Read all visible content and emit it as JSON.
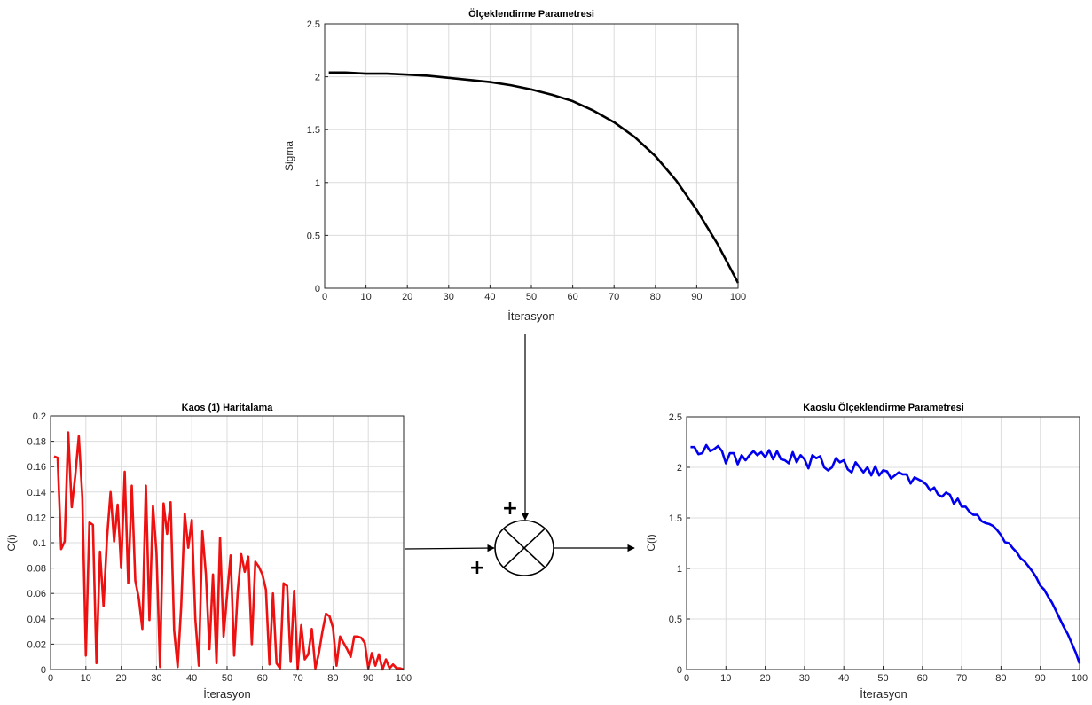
{
  "chart_data": [
    {
      "type": "line",
      "title": "Ölçeklendirme Parametresi",
      "xlabel": "İterasyon",
      "ylabel": "Sigma",
      "xlim": [
        0,
        100
      ],
      "ylim": [
        0,
        2.5
      ],
      "xticks": [
        "0",
        "10",
        "20",
        "30",
        "40",
        "50",
        "60",
        "70",
        "80",
        "90",
        "100"
      ],
      "yticks": [
        "0",
        "0.5",
        "1",
        "1.5",
        "2",
        "2.5"
      ],
      "grid": true,
      "color": "#000000",
      "series": [
        {
          "x": [
            1,
            5,
            10,
            15,
            20,
            25,
            30,
            35,
            40,
            45,
            50,
            55,
            60,
            65,
            70,
            75,
            80,
            85,
            90,
            95,
            100
          ],
          "y": [
            2.04,
            2.04,
            2.03,
            2.03,
            2.02,
            2.01,
            1.99,
            1.97,
            1.95,
            1.92,
            1.88,
            1.83,
            1.77,
            1.68,
            1.57,
            1.43,
            1.25,
            1.02,
            0.74,
            0.42,
            0.05
          ]
        }
      ]
    },
    {
      "type": "line",
      "title": "Kaos (1) Haritalama",
      "xlabel": "İterasyon",
      "ylabel": "C(i)",
      "xlim": [
        0,
        100
      ],
      "ylim": [
        0,
        0.2
      ],
      "xticks": [
        "0",
        "10",
        "20",
        "30",
        "40",
        "50",
        "60",
        "70",
        "80",
        "90",
        "100"
      ],
      "yticks": [
        "0",
        "0.02",
        "0.04",
        "0.06",
        "0.08",
        "0.1",
        "0.12",
        "0.14",
        "0.16",
        "0.18",
        "0.2"
      ],
      "grid": true,
      "color": "#ee1111",
      "series": [
        {
          "x": [
            1,
            2,
            3,
            4,
            5,
            6,
            7,
            8,
            9,
            10,
            11,
            12,
            13,
            14,
            15,
            16,
            17,
            18,
            19,
            20,
            21,
            22,
            23,
            24,
            25,
            26,
            27,
            28,
            29,
            30,
            31,
            32,
            33,
            34,
            35,
            36,
            37,
            38,
            39,
            40,
            41,
            42,
            43,
            44,
            45,
            46,
            47,
            48,
            49,
            50,
            51,
            52,
            53,
            54,
            55,
            56,
            57,
            58,
            59,
            60,
            61,
            62,
            63,
            64,
            65,
            66,
            67,
            68,
            69,
            70,
            71,
            72,
            73,
            74,
            75,
            76,
            77,
            78,
            79,
            80,
            81,
            82,
            83,
            84,
            85,
            86,
            87,
            88,
            89,
            90,
            91,
            92,
            93,
            94,
            95,
            96,
            97,
            98,
            99,
            100
          ],
          "y": [
            0.168,
            0.167,
            0.095,
            0.101,
            0.187,
            0.128,
            0.153,
            0.184,
            0.136,
            0.011,
            0.116,
            0.114,
            0.005,
            0.093,
            0.05,
            0.104,
            0.14,
            0.101,
            0.13,
            0.08,
            0.156,
            0.068,
            0.145,
            0.07,
            0.056,
            0.032,
            0.145,
            0.039,
            0.129,
            0.092,
            0.002,
            0.131,
            0.107,
            0.132,
            0.031,
            0.002,
            0.05,
            0.123,
            0.096,
            0.118,
            0.04,
            0.003,
            0.109,
            0.075,
            0.016,
            0.075,
            0.005,
            0.104,
            0.026,
            0.059,
            0.09,
            0.011,
            0.061,
            0.091,
            0.077,
            0.089,
            0.02,
            0.085,
            0.081,
            0.075,
            0.063,
            0.004,
            0.06,
            0.005,
            0.001,
            0.068,
            0.066,
            0.006,
            0.062,
            0,
            0.035,
            0.008,
            0.012,
            0.032,
            0.001,
            0.013,
            0.03,
            0.044,
            0.042,
            0.033,
            0.003,
            0.026,
            0.021,
            0.016,
            0.01,
            0.026,
            0.026,
            0.025,
            0.021,
            0.001,
            0.013,
            0.003,
            0.012,
            0,
            0.008,
            0.001,
            0.004,
            0.001,
            0.001,
            0
          ]
        }
      ]
    },
    {
      "type": "line",
      "title": "Kaoslu Ölçeklendirme Parametresi",
      "xlabel": "İterasyon",
      "ylabel": "C(i)",
      "xlim": [
        0,
        100
      ],
      "ylim": [
        0,
        2.5
      ],
      "xticks": [
        "0",
        "10",
        "20",
        "30",
        "40",
        "50",
        "60",
        "70",
        "80",
        "90",
        "100"
      ],
      "yticks": [
        "0",
        "0.5",
        "1",
        "1.5",
        "2",
        "2.5"
      ],
      "grid": true,
      "color": "#0000ee",
      "series": [
        {
          "x": [
            1,
            2,
            3,
            4,
            5,
            6,
            7,
            8,
            9,
            10,
            11,
            12,
            13,
            14,
            15,
            16,
            17,
            18,
            19,
            20,
            21,
            22,
            23,
            24,
            25,
            26,
            27,
            28,
            29,
            30,
            31,
            32,
            33,
            34,
            35,
            36,
            37,
            38,
            39,
            40,
            41,
            42,
            43,
            44,
            45,
            46,
            47,
            48,
            49,
            50,
            51,
            52,
            53,
            54,
            55,
            56,
            57,
            58,
            59,
            60,
            61,
            62,
            63,
            64,
            65,
            66,
            67,
            68,
            69,
            70,
            71,
            72,
            73,
            74,
            75,
            76,
            77,
            78,
            79,
            80,
            81,
            82,
            83,
            84,
            85,
            86,
            87,
            88,
            89,
            90,
            91,
            92,
            93,
            94,
            95,
            96,
            97,
            98,
            99,
            100
          ],
          "y": [
            2.2,
            2.2,
            2.13,
            2.14,
            2.22,
            2.16,
            2.18,
            2.21,
            2.16,
            2.04,
            2.14,
            2.14,
            2.03,
            2.12,
            2.07,
            2.12,
            2.16,
            2.12,
            2.15,
            2.1,
            2.17,
            2.08,
            2.16,
            2.08,
            2.07,
            2.04,
            2.15,
            2.05,
            2.12,
            2.08,
            1.99,
            2.12,
            2.09,
            2.11,
            2.0,
            1.97,
            2.0,
            2.09,
            2.05,
            2.07,
            1.98,
            1.95,
            2.05,
            2.0,
            1.95,
            2.0,
            1.92,
            2.01,
            1.92,
            1.97,
            1.96,
            1.89,
            1.92,
            1.95,
            1.93,
            1.93,
            1.84,
            1.9,
            1.88,
            1.86,
            1.83,
            1.77,
            1.8,
            1.73,
            1.71,
            1.75,
            1.73,
            1.64,
            1.69,
            1.61,
            1.61,
            1.56,
            1.53,
            1.53,
            1.47,
            1.45,
            1.44,
            1.42,
            1.38,
            1.33,
            1.26,
            1.25,
            1.2,
            1.16,
            1.1,
            1.07,
            1.02,
            0.97,
            0.91,
            0.83,
            0.79,
            0.72,
            0.66,
            0.58,
            0.5,
            0.42,
            0.35,
            0.26,
            0.17,
            0.06
          ]
        }
      ]
    }
  ]
}
